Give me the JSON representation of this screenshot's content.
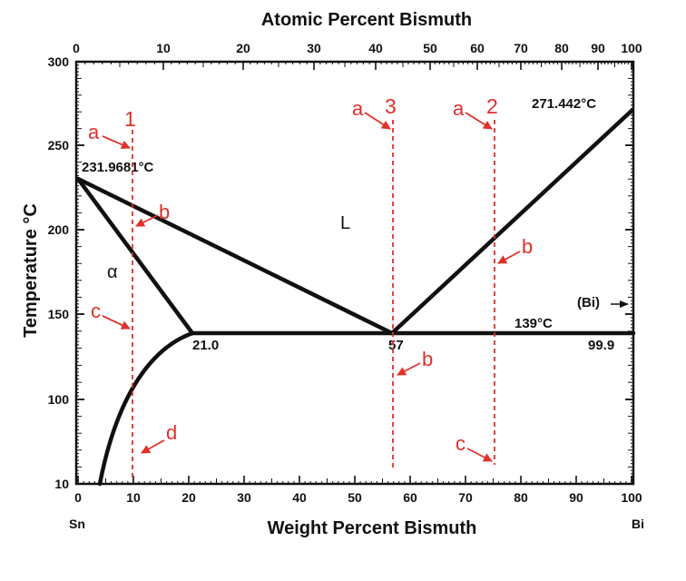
{
  "diagram": {
    "title_top": "Atomic Percent Bismuth",
    "title_bottom": "Weight Percent Bismuth",
    "title_left": "Temperature °C",
    "left_component": "Sn",
    "right_component": "Bi",
    "top_ticks": [
      "0",
      "10",
      "20",
      "30",
      "40",
      "50",
      "60",
      "70",
      "80",
      "90",
      "100"
    ],
    "bottom_ticks": [
      "0",
      "10",
      "20",
      "30",
      "40",
      "50",
      "60",
      "70",
      "80",
      "90",
      "100"
    ],
    "left_ticks": [
      "300",
      "250",
      "200",
      "150",
      "100",
      "10"
    ],
    "point_labels": {
      "sn_melting": "231.9681°C",
      "bi_melting": "271.442°C",
      "eutectic_temp": "139°C",
      "alpha_solubility": "21.0",
      "eutectic_comp": "57",
      "bi_solubility": "99.9",
      "bi_phase": "(Bi)"
    },
    "phase_labels": {
      "liquid": "L",
      "alpha": "α"
    },
    "composition_lines": [
      {
        "id": "1",
        "label": "1",
        "points": [
          "a",
          "b",
          "c",
          "d"
        ]
      },
      {
        "id": "3",
        "label": "3",
        "points": [
          "a",
          "b"
        ]
      },
      {
        "id": "2",
        "label": "2",
        "points": [
          "a",
          "b",
          "c"
        ]
      }
    ],
    "colors": {
      "axes": "#111111",
      "phase_lines": "#111111",
      "annotations": "#e0302a"
    }
  }
}
